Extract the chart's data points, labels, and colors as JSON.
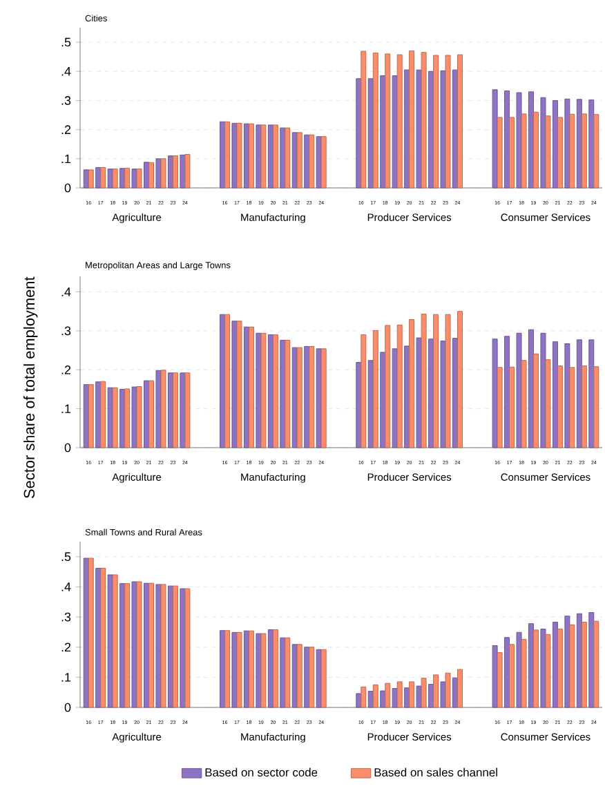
{
  "chart_data": [
    {
      "type": "bar",
      "title": "Cities",
      "grid": "y",
      "categories": [
        "16",
        "17",
        "18",
        "19",
        "20",
        "21",
        "22",
        "23",
        "24",
        "16",
        "17",
        "18",
        "19",
        "20",
        "21",
        "22",
        "23",
        "24",
        "16",
        "17",
        "18",
        "19",
        "20",
        "21",
        "22",
        "23",
        "24",
        "16",
        "17",
        "18",
        "19",
        "20",
        "21",
        "22",
        "23",
        "24"
      ],
      "annotations": [
        "Agriculture",
        "Manufacturing",
        "Producer Services",
        "Consumer Services"
      ],
      "ylim": [
        0,
        0.55
      ],
      "yticks": [
        0,
        {
          "value": 0.1,
          "label": ".1"
        },
        {
          "value": 0.2,
          "label": ".2"
        },
        {
          "value": 0.3,
          "label": ".3"
        },
        {
          "value": 0.4,
          "label": ".4"
        },
        {
          "value": 0.5,
          "label": ".5"
        }
      ],
      "series": [
        {
          "color": "#8e72c4",
          "values": [
            0.062,
            0.07,
            0.065,
            0.067,
            0.065,
            0.088,
            0.1,
            0.11,
            0.113,
            0.227,
            0.222,
            0.22,
            0.216,
            0.216,
            0.206,
            0.19,
            0.182,
            0.176,
            0.375,
            0.375,
            0.385,
            0.385,
            0.405,
            0.405,
            0.4,
            0.402,
            0.405,
            0.337,
            0.333,
            0.327,
            0.33,
            0.31,
            0.3,
            0.305,
            0.304,
            0.302
          ]
        },
        {
          "color": "#fc8d6a",
          "values": [
            0.062,
            0.07,
            0.065,
            0.068,
            0.065,
            0.087,
            0.1,
            0.11,
            0.115,
            0.227,
            0.222,
            0.22,
            0.216,
            0.216,
            0.206,
            0.19,
            0.182,
            0.176,
            0.469,
            0.463,
            0.46,
            0.457,
            0.47,
            0.465,
            0.455,
            0.455,
            0.457,
            0.242,
            0.242,
            0.254,
            0.26,
            0.247,
            0.242,
            0.253,
            0.254,
            0.252
          ]
        }
      ]
    },
    {
      "type": "bar",
      "title": "Metropolitan Areas and Large Towns",
      "grid": "y",
      "ylabel": "Sector share of total employment",
      "categories": [
        "16",
        "17",
        "18",
        "19",
        "20",
        "21",
        "22",
        "23",
        "24",
        "16",
        "17",
        "18",
        "19",
        "20",
        "21",
        "22",
        "23",
        "24",
        "16",
        "17",
        "18",
        "19",
        "20",
        "21",
        "22",
        "23",
        "24",
        "16",
        "17",
        "18",
        "19",
        "20",
        "21",
        "22",
        "23",
        "24"
      ],
      "annotations": [
        "Agriculture",
        "Manufacturing",
        "Producer Services",
        "Consumer Services"
      ],
      "ylim": [
        0,
        0.44
      ],
      "yticks": [
        0,
        {
          "value": 0.1,
          "label": ".1"
        },
        {
          "value": 0.2,
          "label": ".2"
        },
        {
          "value": 0.3,
          "label": ".3"
        },
        {
          "value": 0.4,
          "label": ".4"
        }
      ],
      "series": [
        {
          "color": "#8e72c4",
          "values": [
            0.162,
            0.169,
            0.154,
            0.15,
            0.156,
            0.172,
            0.198,
            0.192,
            0.192,
            0.342,
            0.325,
            0.31,
            0.294,
            0.29,
            0.276,
            0.257,
            0.26,
            0.254,
            0.219,
            0.224,
            0.245,
            0.254,
            0.261,
            0.282,
            0.279,
            0.274,
            0.281,
            0.279,
            0.286,
            0.294,
            0.303,
            0.294,
            0.272,
            0.267,
            0.277,
            0.277
          ]
        },
        {
          "color": "#fc8d6a",
          "values": [
            0.162,
            0.17,
            0.154,
            0.151,
            0.157,
            0.172,
            0.199,
            0.192,
            0.192,
            0.342,
            0.325,
            0.31,
            0.294,
            0.29,
            0.276,
            0.257,
            0.26,
            0.254,
            0.29,
            0.301,
            0.314,
            0.315,
            0.329,
            0.343,
            0.342,
            0.342,
            0.35,
            0.206,
            0.207,
            0.224,
            0.241,
            0.226,
            0.21,
            0.206,
            0.21,
            0.208
          ]
        }
      ]
    },
    {
      "type": "bar",
      "title": "Small Towns and Rural Areas",
      "grid": "y",
      "legend": "bottom",
      "categories": [
        "16",
        "17",
        "18",
        "19",
        "20",
        "21",
        "22",
        "23",
        "24",
        "16",
        "17",
        "18",
        "19",
        "20",
        "21",
        "22",
        "23",
        "24",
        "16",
        "17",
        "18",
        "19",
        "20",
        "21",
        "22",
        "23",
        "24",
        "16",
        "17",
        "18",
        "19",
        "20",
        "21",
        "22",
        "23",
        "24"
      ],
      "annotations": [
        "Agriculture",
        "Manufacturing",
        "Producer Services",
        "Consumer Services"
      ],
      "ylim": [
        0,
        0.55
      ],
      "yticks": [
        0,
        {
          "value": 0.1,
          "label": ".1"
        },
        {
          "value": 0.2,
          "label": ".2"
        },
        {
          "value": 0.3,
          "label": ".3"
        },
        {
          "value": 0.4,
          "label": ".4"
        },
        {
          "value": 0.5,
          "label": ".5"
        }
      ],
      "series": [
        {
          "name": "Based on sector code",
          "color": "#8e72c4",
          "values": [
            0.495,
            0.462,
            0.44,
            0.411,
            0.417,
            0.412,
            0.408,
            0.403,
            0.394,
            0.255,
            0.249,
            0.254,
            0.245,
            0.258,
            0.231,
            0.209,
            0.2,
            0.192,
            0.046,
            0.054,
            0.055,
            0.063,
            0.065,
            0.071,
            0.077,
            0.085,
            0.098,
            0.205,
            0.232,
            0.249,
            0.278,
            0.26,
            0.283,
            0.303,
            0.311,
            0.315
          ]
        },
        {
          "name": "Based on sales channel",
          "color": "#fc8d6a",
          "values": [
            0.495,
            0.462,
            0.44,
            0.411,
            0.417,
            0.412,
            0.408,
            0.403,
            0.394,
            0.255,
            0.249,
            0.254,
            0.245,
            0.258,
            0.231,
            0.209,
            0.2,
            0.192,
            0.068,
            0.075,
            0.08,
            0.085,
            0.085,
            0.097,
            0.108,
            0.114,
            0.126,
            0.182,
            0.209,
            0.226,
            0.257,
            0.242,
            0.26,
            0.274,
            0.283,
            0.286
          ]
        }
      ]
    }
  ]
}
